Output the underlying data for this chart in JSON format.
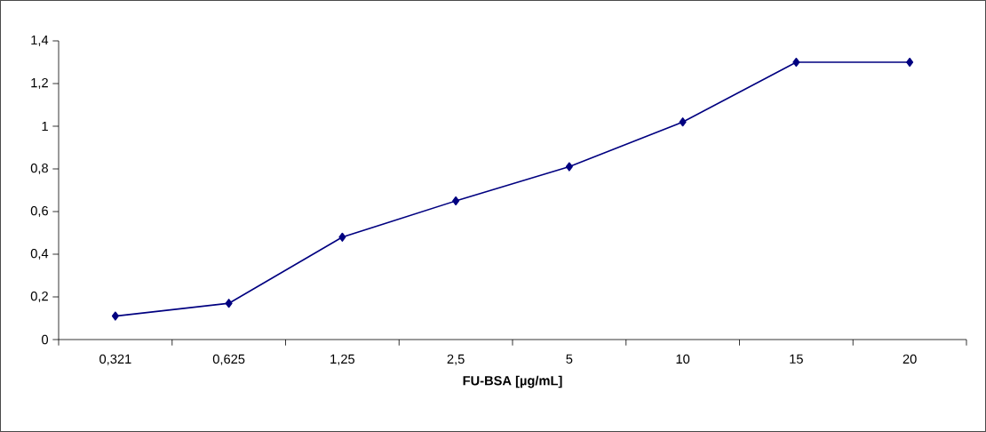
{
  "chart_data": {
    "type": "line",
    "xlabel": "FU-BSA [µg/mL]",
    "categories": [
      "0,321",
      "0,625",
      "1,25",
      "2,5",
      "5",
      "10",
      "15",
      "20"
    ],
    "series": [
      {
        "color": "#000080",
        "values": [
          0.11,
          0.17,
          0.48,
          0.65,
          0.81,
          1.02,
          1.3,
          1.3
        ]
      }
    ],
    "ylim": [
      0,
      1.4
    ],
    "yticks": [
      0,
      {
        "value": 0.2,
        "label": "0,2"
      },
      {
        "value": 0.4,
        "label": "0,4"
      },
      {
        "value": 0.6,
        "label": "0,6"
      },
      {
        "value": 0.8,
        "label": "0,8"
      },
      1,
      {
        "value": 1.2,
        "label": "1,2"
      },
      {
        "value": 1.4,
        "label": "1,4"
      }
    ],
    "grid": false,
    "marker": "diamond",
    "line_style": "solid"
  }
}
